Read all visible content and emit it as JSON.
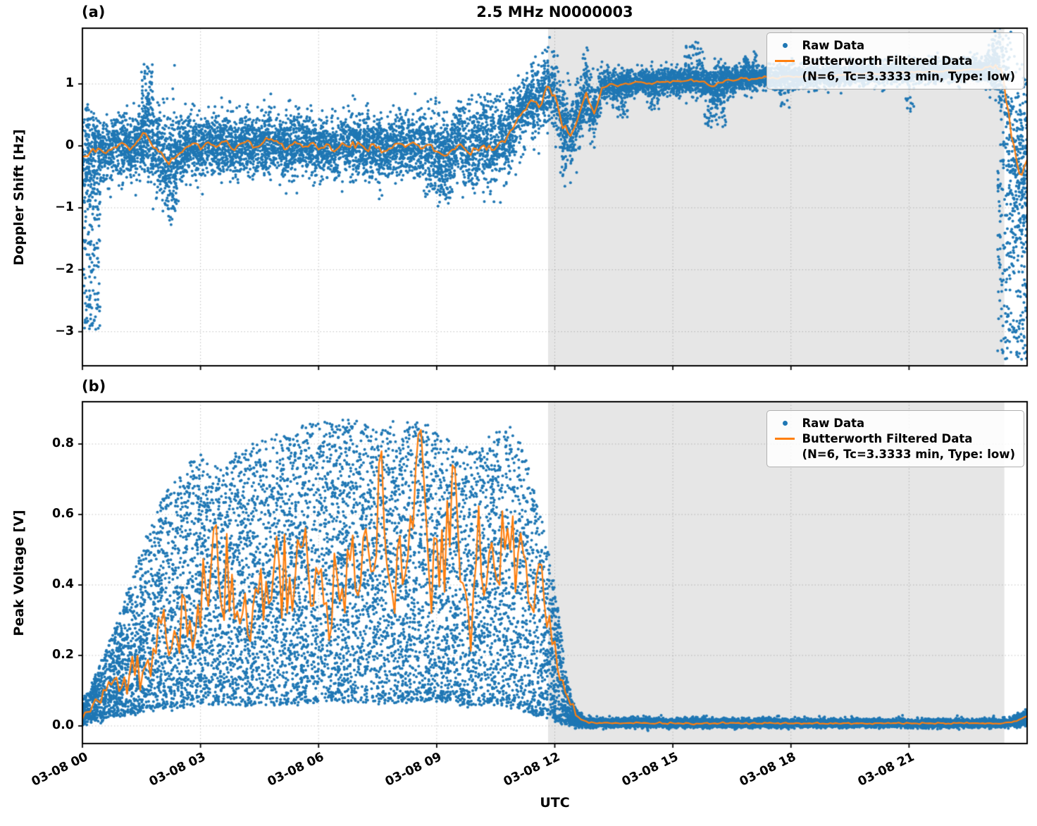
{
  "figure": {
    "title": "2.5 MHz N0000003",
    "xlabel": "UTC"
  },
  "legend": {
    "raw_label": "Raw Data",
    "filtered_label": "Butterworth Filtered Data",
    "filtered_sublabel": "(N=6, Tc=3.3333 min, Type: low)"
  },
  "colors": {
    "raw": "#1f77b4",
    "filtered": "#ff7f0e",
    "shade": "#e6e6e6",
    "grid": "#8c8c8c",
    "spine": "#000000"
  },
  "chart_data": [
    {
      "type": "scatter+line",
      "panel_label": "(a)",
      "ylabel": "Doppler Shift [Hz]",
      "xlim": [
        0,
        24
      ],
      "ylim": [
        -3.55,
        1.9
      ],
      "yticks": [
        1,
        0,
        -1,
        -2,
        -3
      ],
      "ytick_labels": [
        "1",
        "0",
        "−1",
        "−2",
        "−3"
      ],
      "xticks": [
        0,
        3,
        6,
        9,
        12,
        15,
        18,
        21
      ],
      "shade_region": [
        11.83,
        23.42
      ],
      "series": {
        "filtered": {
          "x_start": 0,
          "x_step": 0.2,
          "y": [
            -0.18,
            -0.1,
            -0.04,
            -0.12,
            -0.02,
            0.05,
            -0.07,
            0.08,
            0.2,
            -0.03,
            -0.1,
            -0.3,
            -0.16,
            -0.04,
            0.04,
            -0.06,
            0.06,
            -0.02,
            0.07,
            -0.05,
            0.03,
            0.09,
            -0.02,
            0.06,
            0.11,
            0.04,
            -0.05,
            0.07,
            -0.02,
            0.04,
            -0.06,
            0.03,
            -0.09,
            0.05,
            -0.02,
            0.06,
            -0.06,
            0.03,
            -0.11,
            -0.04,
            0.04,
            -0.02,
            0.06,
            -0.05,
            0.02,
            -0.09,
            -0.16,
            -0.06,
            0.03,
            -0.11,
            -0.05,
            0.01,
            -0.07,
            0.06,
            0.16,
            0.36,
            0.56,
            0.74,
            0.62,
            0.96,
            0.82,
            0.28,
            0.16,
            0.47,
            0.86,
            0.52,
            0.94,
            1.0,
            0.96,
            1.01,
            1.02,
            1.03,
            1.01,
            1.04,
            1.03,
            1.05,
            1.04,
            1.06,
            1.05,
            1.04,
            0.96,
            1.02,
            1.07,
            1.06,
            1.09,
            1.08,
            1.1,
            1.11,
            1.09,
            1.12,
            1.12,
            1.11,
            1.13,
            1.12,
            1.14,
            1.13,
            1.15,
            1.14,
            1.16,
            1.15,
            1.17,
            1.16,
            1.18,
            1.17,
            1.19,
            1.18,
            1.2,
            1.19,
            1.21,
            1.2,
            1.22,
            1.21,
            1.23,
            1.24,
            1.23,
            1.27,
            1.31,
            1.08,
            0.15,
            -0.45,
            -0.22
          ]
        },
        "raw": {
          "model": "band_around_filtered",
          "n": 12000,
          "spread_x": [
            0,
            0.25,
            0.55,
            1.5,
            1.65,
            1.85,
            2.1,
            2.3,
            2.6,
            6,
            8.6,
            9.0,
            9.4,
            10.5,
            10.8,
            11.3,
            12.0,
            12.5,
            12.9,
            13.4,
            15.9,
            16.1,
            16.4,
            19,
            22.9,
            23.25,
            23.5,
            24
          ],
          "spread_v": [
            0.4,
            0.35,
            0.26,
            0.26,
            0.4,
            0.28,
            0.4,
            0.42,
            0.24,
            0.23,
            0.26,
            0.33,
            0.28,
            0.3,
            0.32,
            0.3,
            0.33,
            0.3,
            0.26,
            0.11,
            0.11,
            0.22,
            0.1,
            0.09,
            0.09,
            0.28,
            0.75,
            0.7
          ],
          "clusters": [
            {
              "x0": 0.03,
              "x1": 0.45,
              "y0": -3.0,
              "y1": -0.4,
              "n": 160
            },
            {
              "x0": 1.5,
              "x1": 1.8,
              "y0": 0.35,
              "y1": 1.32,
              "n": 60
            },
            {
              "x0": 2.1,
              "x1": 2.4,
              "y0": -1.05,
              "y1": -0.35,
              "n": 45
            },
            {
              "x0": 8.7,
              "x1": 9.4,
              "y0": -0.85,
              "y1": -0.35,
              "n": 55
            },
            {
              "x0": 9.6,
              "x1": 10.7,
              "y0": 0.35,
              "y1": 0.85,
              "n": 55
            },
            {
              "x0": 13.55,
              "x1": 13.85,
              "y0": 0.45,
              "y1": 0.95,
              "n": 35
            },
            {
              "x0": 14.35,
              "x1": 14.65,
              "y0": 0.55,
              "y1": 0.95,
              "n": 25
            },
            {
              "x0": 15.3,
              "x1": 15.8,
              "y0": 1.25,
              "y1": 1.68,
              "n": 40
            },
            {
              "x0": 15.8,
              "x1": 16.4,
              "y0": 0.3,
              "y1": 0.95,
              "n": 70
            },
            {
              "x0": 16.8,
              "x1": 17.15,
              "y0": 1.25,
              "y1": 1.55,
              "n": 25
            },
            {
              "x0": 17.7,
              "x1": 18.0,
              "y0": 0.6,
              "y1": 1.0,
              "n": 18
            },
            {
              "x0": 20.9,
              "x1": 21.15,
              "y0": 0.55,
              "y1": 1.0,
              "n": 15
            },
            {
              "x0": 23.25,
              "x1": 24.0,
              "y0": -3.45,
              "y1": -0.2,
              "n": 240
            }
          ]
        }
      }
    },
    {
      "type": "scatter+line",
      "panel_label": "(b)",
      "ylabel": "Peak Voltage [V]",
      "xlim": [
        0,
        24
      ],
      "ylim": [
        -0.05,
        0.92
      ],
      "yticks": [
        0.8,
        0.6,
        0.4,
        0.2,
        0.0
      ],
      "ytick_labels": [
        "0.8",
        "0.6",
        "0.4",
        "0.2",
        "0.0"
      ],
      "xticks": [
        0,
        3,
        6,
        9,
        12,
        15,
        18,
        21
      ],
      "xtick_labels": [
        "03-08 00",
        "03-08 03",
        "03-08 06",
        "03-08 09",
        "03-08 12",
        "03-08 15",
        "03-08 18",
        "03-08 21"
      ],
      "shade_region": [
        11.83,
        23.42
      ],
      "series": {
        "filtered": {
          "x_start": 0,
          "x_step": 0.2,
          "y": [
            0.02,
            0.04,
            0.07,
            0.1,
            0.13,
            0.11,
            0.15,
            0.2,
            0.17,
            0.22,
            0.29,
            0.2,
            0.25,
            0.36,
            0.22,
            0.28,
            0.34,
            0.57,
            0.3,
            0.43,
            0.29,
            0.26,
            0.39,
            0.3,
            0.36,
            0.46,
            0.32,
            0.41,
            0.51,
            0.34,
            0.43,
            0.35,
            0.49,
            0.39,
            0.47,
            0.37,
            0.56,
            0.44,
            0.78,
            0.41,
            0.5,
            0.43,
            0.56,
            0.84,
            0.44,
            0.53,
            0.38,
            0.74,
            0.41,
            0.33,
            0.46,
            0.37,
            0.52,
            0.4,
            0.56,
            0.38,
            0.49,
            0.34,
            0.46,
            0.28,
            0.24,
            0.13,
            0.06,
            0.025,
            0.013,
            0.009,
            0.008,
            0.008,
            0.008,
            0.008,
            0.007,
            0.008,
            0.007,
            0.008,
            0.007,
            0.008,
            0.007,
            0.008,
            0.007,
            0.008,
            0.007,
            0.008,
            0.007,
            0.008,
            0.007,
            0.008,
            0.007,
            0.008,
            0.007,
            0.008,
            0.007,
            0.008,
            0.007,
            0.008,
            0.007,
            0.008,
            0.007,
            0.008,
            0.007,
            0.008,
            0.007,
            0.008,
            0.007,
            0.008,
            0.007,
            0.008,
            0.007,
            0.008,
            0.007,
            0.008,
            0.007,
            0.008,
            0.007,
            0.008,
            0.007,
            0.008,
            0.007,
            0.008,
            0.01,
            0.018,
            0.028
          ]
        },
        "raw": {
          "model": "envelope",
          "n": 16000,
          "power": 1.25,
          "env_x": [
            0,
            0.3,
            0.6,
            1.0,
            1.5,
            2.0,
            2.5,
            3.0,
            3.5,
            4.0,
            5.0,
            6.0,
            7.0,
            7.5,
            8.0,
            8.5,
            9.0,
            9.5,
            10.0,
            10.5,
            11.0,
            11.3,
            11.6,
            11.9,
            12.1,
            12.3,
            12.5,
            12.8,
            23.3,
            23.6,
            24.0
          ],
          "env_hi": [
            0.07,
            0.13,
            0.22,
            0.33,
            0.5,
            0.64,
            0.73,
            0.78,
            0.73,
            0.78,
            0.83,
            0.86,
            0.87,
            0.84,
            0.87,
            0.86,
            0.84,
            0.8,
            0.78,
            0.83,
            0.86,
            0.76,
            0.62,
            0.46,
            0.32,
            0.14,
            0.05,
            0.018,
            0.014,
            0.02,
            0.045
          ],
          "env_lo": [
            0.008,
            0.015,
            0.02,
            0.03,
            0.04,
            0.05,
            0.05,
            0.06,
            0.06,
            0.06,
            0.06,
            0.07,
            0.07,
            0.07,
            0.07,
            0.07,
            0.07,
            0.06,
            0.06,
            0.06,
            0.05,
            0.04,
            0.03,
            0.02,
            0.012,
            0.006,
            0.003,
            0.001,
            0.001,
            0.002,
            0.004
          ],
          "clusters": [
            {
              "x0": 12.8,
              "x1": 23.3,
              "y0": 0.012,
              "y1": 0.03,
              "n": 40
            }
          ]
        }
      }
    }
  ]
}
